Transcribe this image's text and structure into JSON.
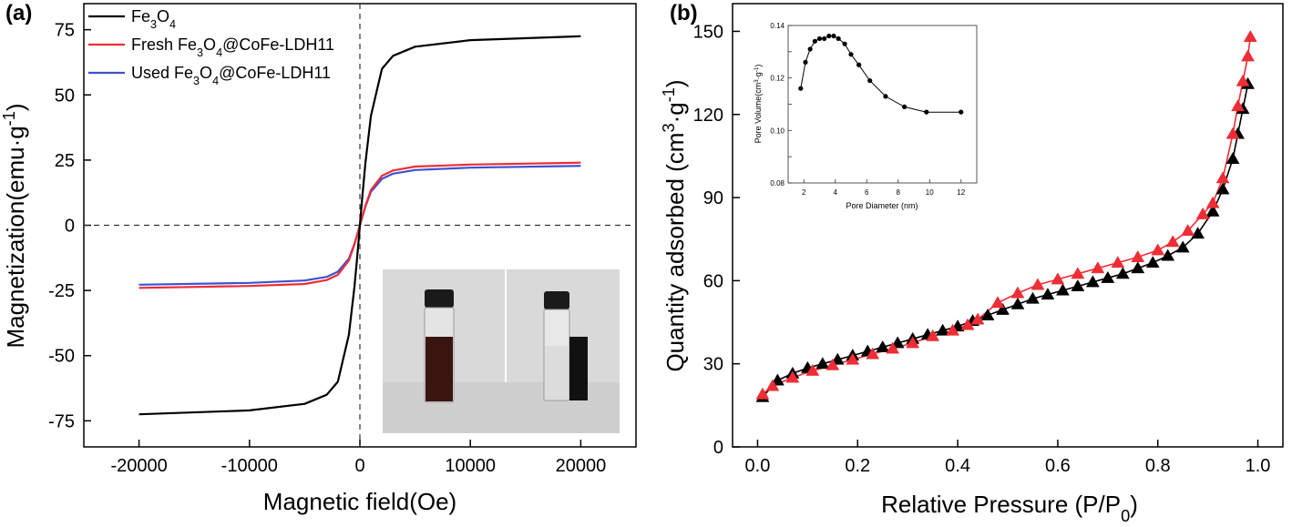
{
  "chart_data": [
    {
      "type": "line",
      "panel_label": "(a)",
      "xlabel": "Magnetic field(Oe)",
      "ylabel": "Magnetization(emu·g⁻¹)",
      "xlim": [
        -25000,
        25000
      ],
      "ylim": [
        -85,
        85
      ],
      "xticks": [
        -20000,
        -10000,
        0,
        10000,
        20000
      ],
      "yticks": [
        -75,
        -50,
        -25,
        0,
        25,
        50,
        75
      ],
      "legend_position": "top-left",
      "reference_lines": {
        "x": 0,
        "y": 0
      },
      "series": [
        {
          "name": "Fe₃O₄",
          "color": "#000000",
          "x": [
            -20000,
            -10000,
            -5000,
            -3000,
            -2000,
            -1000,
            -500,
            -200,
            0,
            200,
            500,
            1000,
            2000,
            3000,
            5000,
            10000,
            20000
          ],
          "y": [
            -72.5,
            -71,
            -68.5,
            -65,
            -60,
            -42,
            -24,
            -10,
            0,
            10,
            24,
            42,
            60,
            65,
            68.5,
            71,
            72.5
          ]
        },
        {
          "name": "Fresh Fe₃O₄@CoFe-LDH11",
          "color": "#ee2d35",
          "x": [
            -20000,
            -10000,
            -5000,
            -3000,
            -2000,
            -1000,
            -500,
            -200,
            0,
            200,
            500,
            1000,
            2000,
            3000,
            5000,
            10000,
            20000
          ],
          "y": [
            -24,
            -23.3,
            -22.5,
            -21,
            -19,
            -13.5,
            -7.5,
            -3,
            0,
            3,
            7.5,
            13.5,
            19,
            21,
            22.5,
            23.3,
            24
          ]
        },
        {
          "name": "Used Fe₃O₄@CoFe-LDH11",
          "color": "#3f51d0",
          "x": [
            -20000,
            -10000,
            -5000,
            -3000,
            -2000,
            -1000,
            -500,
            -200,
            0,
            200,
            500,
            1000,
            2000,
            3000,
            5000,
            10000,
            20000
          ],
          "y": [
            -22.8,
            -22.1,
            -21.2,
            -19.8,
            -17.8,
            -12.8,
            -7.2,
            -2.9,
            0,
            2.9,
            7.2,
            12.8,
            17.8,
            19.8,
            21.2,
            22.1,
            22.8
          ]
        }
      ]
    },
    {
      "type": "line",
      "panel_label": "(b)",
      "xlabel": "Relative Pressure (P/P₀)",
      "ylabel": "Quantity adsorbed (cm³·g⁻¹)",
      "xlim": [
        -0.05,
        1.05
      ],
      "ylim": [
        0,
        160
      ],
      "xticks": [
        0.0,
        0.2,
        0.4,
        0.6,
        0.8,
        1.0
      ],
      "yticks": [
        0,
        30,
        60,
        90,
        120,
        150
      ],
      "marker": "triangle",
      "series": [
        {
          "color": "#000000",
          "x": [
            0.01,
            0.04,
            0.07,
            0.1,
            0.13,
            0.16,
            0.19,
            0.22,
            0.25,
            0.28,
            0.31,
            0.34,
            0.37,
            0.4,
            0.43,
            0.46,
            0.49,
            0.52,
            0.55,
            0.58,
            0.61,
            0.64,
            0.67,
            0.7,
            0.73,
            0.76,
            0.79,
            0.82,
            0.85,
            0.88,
            0.91,
            0.93,
            0.95,
            0.96,
            0.97,
            0.98
          ],
          "y": [
            18,
            24,
            26.5,
            28.5,
            30,
            31.5,
            33,
            34.5,
            36,
            37.5,
            39,
            40.5,
            42,
            43.5,
            45.5,
            47.5,
            49.5,
            51.5,
            53.5,
            55,
            56.5,
            58,
            59.5,
            61,
            62.5,
            64.5,
            66.5,
            69,
            72,
            77,
            85,
            93,
            104,
            113,
            122,
            131
          ]
        },
        {
          "color": "#ee2d35",
          "x": [
            0.01,
            0.03,
            0.07,
            0.11,
            0.15,
            0.19,
            0.23,
            0.27,
            0.31,
            0.35,
            0.39,
            0.42,
            0.44,
            0.48,
            0.52,
            0.56,
            0.6,
            0.64,
            0.68,
            0.72,
            0.76,
            0.8,
            0.83,
            0.86,
            0.89,
            0.91,
            0.93,
            0.95,
            0.96,
            0.97,
            0.98,
            0.985
          ],
          "y": [
            19,
            22,
            25,
            27.5,
            29.5,
            31.5,
            33.5,
            35.5,
            37.5,
            40,
            42,
            44,
            46,
            52,
            55.5,
            58.5,
            60.5,
            62.5,
            64.5,
            66.5,
            68.5,
            71,
            74,
            78,
            84,
            88,
            97,
            113,
            123,
            132,
            141,
            148
          ]
        }
      ],
      "inset": {
        "type": "line",
        "xlabel": "Pore Diameter (nm)",
        "ylabel": "Pore Volume(cm³·g⁻¹)",
        "xlim": [
          1,
          13
        ],
        "ylim": [
          0.08,
          0.14
        ],
        "xticks": [
          2,
          4,
          6,
          8,
          10,
          12
        ],
        "yticks": [
          0.08,
          0.09,
          0.1,
          0.11,
          0.12,
          0.13,
          0.14
        ],
        "ytick_labels": [
          "0.08",
          "0.10",
          "0.12",
          "0.14"
        ],
        "marker": "circle",
        "x": [
          1.8,
          2.1,
          2.4,
          2.7,
          3.0,
          3.3,
          3.6,
          3.9,
          4.2,
          4.6,
          5.0,
          5.5,
          6.2,
          7.2,
          8.4,
          9.8,
          12.0
        ],
        "y": [
          0.116,
          0.126,
          0.131,
          0.134,
          0.135,
          0.135,
          0.136,
          0.136,
          0.135,
          0.133,
          0.129,
          0.125,
          0.119,
          0.113,
          0.109,
          0.107,
          0.107
        ]
      }
    }
  ]
}
